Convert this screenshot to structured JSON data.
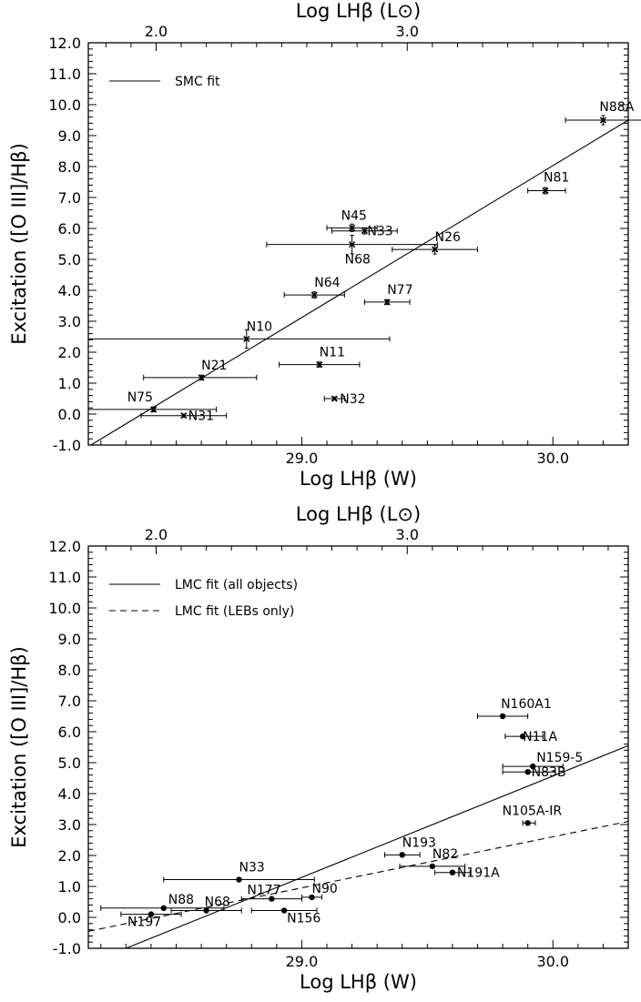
{
  "chart_data": [
    {
      "type": "scatter",
      "xlabel": "Log LHβ (W)",
      "x2label": "Log LHβ (L⊙)",
      "ylabel": "Excitation ([O III]/Hβ)",
      "xlim": [
        28.15,
        30.3
      ],
      "ylim": [
        -1.0,
        12.0
      ],
      "x_ticks": [
        29.0,
        30.0
      ],
      "x_tick_labels": [
        "29.0",
        "30.0"
      ],
      "x2_ticks": [
        2.0,
        3.0
      ],
      "x2_tick_labels": [
        "2.0",
        "3.0"
      ],
      "y_ticks": [
        -1.0,
        0.0,
        1.0,
        2.0,
        3.0,
        4.0,
        5.0,
        6.0,
        7.0,
        8.0,
        9.0,
        10.0,
        11.0,
        12.0
      ],
      "y_tick_labels": [
        "-1.0",
        "0.0",
        "1.0",
        "2.0",
        "3.0",
        "4.0",
        "5.0",
        "6.0",
        "7.0",
        "8.0",
        "9.0",
        "10.0",
        "11.0",
        "12.0"
      ],
      "x2_offset": 26.42,
      "marker": "x",
      "grid": false,
      "legend": {
        "position": "top-left",
        "entries": [
          {
            "label": "SMC fit",
            "style": "solid"
          }
        ]
      },
      "fits": [
        {
          "style": "solid",
          "x": [
            28.15,
            30.3
          ],
          "y": [
            -1.05,
            9.5
          ]
        }
      ],
      "points": [
        {
          "name": "N88A",
          "x": 30.2,
          "y": 9.5,
          "xerr": [
            0.15,
            0.18
          ],
          "yerr": 0.15
        },
        {
          "name": "N81",
          "x": 29.97,
          "y": 7.22,
          "xerr": [
            0.07,
            0.08
          ],
          "yerr": 0.1
        },
        {
          "name": "N45",
          "x": 29.2,
          "y": 6.02,
          "xerr": [
            0.1,
            0.1
          ],
          "yerr": 0.12
        },
        {
          "name": "N33",
          "x": 29.25,
          "y": 5.92,
          "xerr": [
            0.13,
            0.13
          ],
          "yerr": 0.1
        },
        {
          "name": "N68",
          "x": 29.2,
          "y": 5.48,
          "xerr": [
            0.34,
            0.34
          ],
          "yerr": 0.3
        },
        {
          "name": "N26",
          "x": 29.53,
          "y": 5.32,
          "xerr": [
            0.17,
            0.17
          ],
          "yerr": 0.15
        },
        {
          "name": "N64",
          "x": 29.05,
          "y": 3.85,
          "xerr": [
            0.12,
            0.12
          ],
          "yerr": 0.1
        },
        {
          "name": "N77",
          "x": 29.34,
          "y": 3.62,
          "xerr": [
            0.09,
            0.09
          ],
          "yerr": 0.08
        },
        {
          "name": "N10",
          "x": 28.78,
          "y": 2.43,
          "xerr": [
            0.63,
            0.57
          ],
          "yerr": 0.3
        },
        {
          "name": "N11",
          "x": 29.07,
          "y": 1.6,
          "xerr": [
            0.16,
            0.16
          ],
          "yerr": 0.08
        },
        {
          "name": "N21",
          "x": 28.6,
          "y": 1.18,
          "xerr": [
            0.23,
            0.22
          ],
          "yerr": 0.08
        },
        {
          "name": "N32",
          "x": 29.13,
          "y": 0.5,
          "xerr": [
            0.04,
            0.04
          ],
          "yerr": 0.05
        },
        {
          "name": "N75",
          "x": 28.41,
          "y": 0.15,
          "xerr": [
            0.26,
            0.25
          ],
          "yerr": 0.08
        },
        {
          "name": "N31",
          "x": 28.53,
          "y": -0.05,
          "xerr": [
            0.17,
            0.17
          ],
          "yerr": 0.05
        }
      ]
    },
    {
      "type": "scatter",
      "xlabel": "Log LHβ (W)",
      "x2label": "Log LHβ (L⊙)",
      "ylabel": "Excitation ([O III]/Hβ)",
      "xlim": [
        28.15,
        30.3
      ],
      "ylim": [
        -1.0,
        12.0
      ],
      "x_ticks": [
        29.0,
        30.0
      ],
      "x_tick_labels": [
        "29.0",
        "30.0"
      ],
      "x2_ticks": [
        2.0,
        3.0
      ],
      "x2_tick_labels": [
        "2.0",
        "3.0"
      ],
      "y_ticks": [
        -1.0,
        0.0,
        1.0,
        2.0,
        3.0,
        4.0,
        5.0,
        6.0,
        7.0,
        8.0,
        9.0,
        10.0,
        11.0,
        12.0
      ],
      "y_tick_labels": [
        "-1.0",
        "0.0",
        "1.0",
        "2.0",
        "3.0",
        "4.0",
        "5.0",
        "6.0",
        "7.0",
        "8.0",
        "9.0",
        "10.0",
        "11.0",
        "12.0"
      ],
      "x2_offset": 26.42,
      "marker": "dot",
      "grid": false,
      "legend": {
        "position": "top-left",
        "entries": [
          {
            "label": "LMC fit (all objects)",
            "style": "solid"
          },
          {
            "label": "LMC fit (LEBs only)",
            "style": "dashed"
          }
        ]
      },
      "fits": [
        {
          "style": "solid",
          "x": [
            28.3,
            30.3
          ],
          "y": [
            -1.0,
            5.55
          ]
        },
        {
          "style": "dashed",
          "x": [
            28.15,
            30.3
          ],
          "y": [
            -0.45,
            3.1
          ]
        }
      ],
      "points": [
        {
          "name": "N160A1",
          "x": 29.8,
          "y": 6.5,
          "xerr": [
            0.1,
            0.1
          ],
          "yerr": 0.0
        },
        {
          "name": "N11A",
          "x": 29.88,
          "y": 5.85,
          "xerr": [
            0.07,
            0.08
          ],
          "yerr": 0.0
        },
        {
          "name": "N159-5",
          "x": 29.92,
          "y": 4.88,
          "xerr": [
            0.12,
            0.12
          ],
          "yerr": 0.0
        },
        {
          "name": "N83B",
          "x": 29.9,
          "y": 4.7,
          "xerr": [
            0.1,
            0.11
          ],
          "yerr": 0.0
        },
        {
          "name": "N105A-IR",
          "x": 29.9,
          "y": 3.05,
          "xerr": [
            0.02,
            0.03
          ],
          "yerr": 0.0
        },
        {
          "name": "N193",
          "x": 29.4,
          "y": 2.02,
          "xerr": [
            0.07,
            0.07
          ],
          "yerr": 0.0
        },
        {
          "name": "N82",
          "x": 29.52,
          "y": 1.65,
          "xerr": [
            0.13,
            0.13
          ],
          "yerr": 0.0
        },
        {
          "name": "N191A",
          "x": 29.6,
          "y": 1.45,
          "xerr": [
            0.07,
            0.07
          ],
          "yerr": 0.0
        },
        {
          "name": "N33",
          "x": 28.75,
          "y": 1.22,
          "xerr": [
            0.3,
            0.3
          ],
          "yerr": 0.0
        },
        {
          "name": "N88",
          "x": 28.45,
          "y": 0.3,
          "xerr": [
            0.25,
            0.24
          ],
          "yerr": 0.0
        },
        {
          "name": "N177",
          "x": 28.88,
          "y": 0.6,
          "xerr": [
            0.12,
            0.12
          ],
          "yerr": 0.0
        },
        {
          "name": "N90",
          "x": 29.04,
          "y": 0.65,
          "xerr": [
            0.04,
            0.04
          ],
          "yerr": 0.0
        },
        {
          "name": "N68",
          "x": 28.62,
          "y": 0.22,
          "xerr": [
            0.14,
            0.14
          ],
          "yerr": 0.0
        },
        {
          "name": "N156",
          "x": 28.93,
          "y": 0.22,
          "xerr": [
            0.13,
            0.13
          ],
          "yerr": 0.0
        },
        {
          "name": "N197",
          "x": 28.4,
          "y": 0.1,
          "xerr": [
            0.12,
            0.12
          ],
          "yerr": 0.0
        }
      ]
    }
  ]
}
